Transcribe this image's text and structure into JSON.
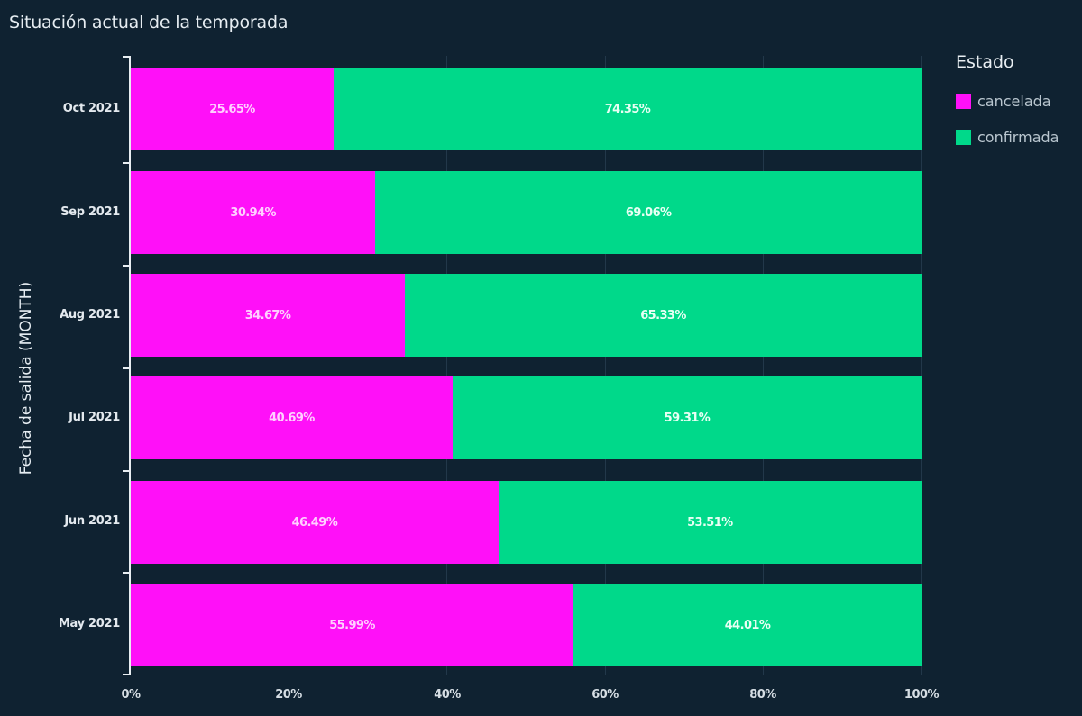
{
  "title": "Situación actual de la temporada",
  "y_axis_label": "Fecha de salida (MONTH)",
  "legend": {
    "title": "Estado",
    "items": [
      {
        "label": "cancelada",
        "color": "#ff10f8"
      },
      {
        "label": "confirmada",
        "color": "#00d98a"
      }
    ]
  },
  "x_ticks": [
    "0%",
    "20%",
    "40%",
    "60%",
    "80%",
    "100%"
  ],
  "rows": [
    {
      "label": "Oct 2021",
      "cancelada": 25.65,
      "confirmada": 74.35,
      "cancelada_text": "25.65%",
      "confirmada_text": "74.35%"
    },
    {
      "label": "Sep 2021",
      "cancelada": 30.94,
      "confirmada": 69.06,
      "cancelada_text": "30.94%",
      "confirmada_text": "69.06%"
    },
    {
      "label": "Aug 2021",
      "cancelada": 34.67,
      "confirmada": 65.33,
      "cancelada_text": "34.67%",
      "confirmada_text": "65.33%"
    },
    {
      "label": "Jul 2021",
      "cancelada": 40.69,
      "confirmada": 59.31,
      "cancelada_text": "40.69%",
      "confirmada_text": "59.31%"
    },
    {
      "label": "Jun 2021",
      "cancelada": 46.49,
      "confirmada": 53.51,
      "cancelada_text": "46.49%",
      "confirmada_text": "53.51%"
    },
    {
      "label": "May 2021",
      "cancelada": 55.99,
      "confirmada": 44.01,
      "cancelada_text": "55.99%",
      "confirmada_text": "44.01%"
    }
  ],
  "chart_data": {
    "type": "bar",
    "orientation": "horizontal",
    "stacked": "percent",
    "title": "Situación actual de la temporada",
    "xlabel": "",
    "ylabel": "Fecha de salida (MONTH)",
    "categories": [
      "Oct 2021",
      "Sep 2021",
      "Aug 2021",
      "Jul 2021",
      "Jun 2021",
      "May 2021"
    ],
    "series": [
      {
        "name": "cancelada",
        "color": "#ff10f8",
        "values": [
          25.65,
          30.94,
          34.67,
          40.69,
          46.49,
          55.99
        ]
      },
      {
        "name": "confirmada",
        "color": "#00d98a",
        "values": [
          74.35,
          69.06,
          65.33,
          59.31,
          53.51,
          44.01
        ]
      }
    ],
    "xlim": [
      0,
      100
    ],
    "x_ticks": [
      "0%",
      "20%",
      "40%",
      "60%",
      "80%",
      "100%"
    ],
    "grid": "vertical",
    "legend_title": "Estado",
    "legend_position": "right",
    "data_labels": true
  }
}
